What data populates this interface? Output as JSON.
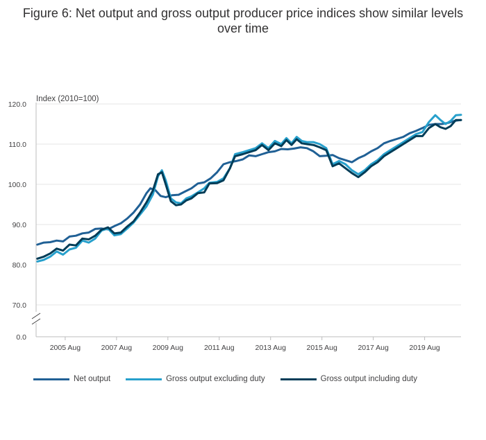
{
  "chart_data": {
    "type": "line",
    "title": "Figure 6: Net output and gross output producer price indices show similar levels over time",
    "ylabel": "Index (2010=100)",
    "xlabel": "",
    "ylim": [
      0,
      120
    ],
    "axis_break": [
      0,
      70
    ],
    "y_ticks": [
      "0.0",
      "70.0",
      "80.0",
      "90.0",
      "100.0",
      "110.0",
      "120.0"
    ],
    "x_ticks": [
      {
        "x": 2005.583,
        "label": "2005 Aug"
      },
      {
        "x": 2007.583,
        "label": "2007 Aug"
      },
      {
        "x": 2009.583,
        "label": "2009 Aug"
      },
      {
        "x": 2011.583,
        "label": "2011 Aug"
      },
      {
        "x": 2013.583,
        "label": "2013 Aug"
      },
      {
        "x": 2015.583,
        "label": "2015 Aug"
      },
      {
        "x": 2017.583,
        "label": "2017 Aug"
      },
      {
        "x": 2019.583,
        "label": "2019 Aug"
      }
    ],
    "grid": true,
    "legend_position": "bottom",
    "series": [
      {
        "name": "Net output",
        "color": "#206095",
        "points": [
          [
            2004.5,
            85.0
          ],
          [
            2004.75,
            85.5
          ],
          [
            2005.0,
            85.6
          ],
          [
            2005.25,
            86.0
          ],
          [
            2005.5,
            85.8
          ],
          [
            2005.75,
            87.0
          ],
          [
            2006.0,
            87.2
          ],
          [
            2006.25,
            87.8
          ],
          [
            2006.5,
            88.0
          ],
          [
            2006.75,
            88.9
          ],
          [
            2007.0,
            89.0
          ],
          [
            2007.25,
            88.8
          ],
          [
            2007.5,
            89.6
          ],
          [
            2007.75,
            90.3
          ],
          [
            2008.0,
            91.5
          ],
          [
            2008.25,
            93.0
          ],
          [
            2008.5,
            95.0
          ],
          [
            2008.75,
            97.8
          ],
          [
            2008.9,
            99.0
          ],
          [
            2009.1,
            98.5
          ],
          [
            2009.3,
            97.1
          ],
          [
            2009.5,
            96.8
          ],
          [
            2009.75,
            97.3
          ],
          [
            2010.0,
            97.4
          ],
          [
            2010.25,
            98.2
          ],
          [
            2010.5,
            99.0
          ],
          [
            2010.75,
            100.2
          ],
          [
            2011.0,
            100.5
          ],
          [
            2011.25,
            101.5
          ],
          [
            2011.5,
            103.0
          ],
          [
            2011.75,
            105.0
          ],
          [
            2012.0,
            105.5
          ],
          [
            2012.25,
            105.8
          ],
          [
            2012.5,
            106.2
          ],
          [
            2012.75,
            107.2
          ],
          [
            2013.0,
            107.0
          ],
          [
            2013.25,
            107.5
          ],
          [
            2013.5,
            108.0
          ],
          [
            2013.75,
            108.2
          ],
          [
            2014.0,
            108.8
          ],
          [
            2014.25,
            108.7
          ],
          [
            2014.5,
            108.9
          ],
          [
            2014.75,
            109.2
          ],
          [
            2015.0,
            109.0
          ],
          [
            2015.25,
            108.2
          ],
          [
            2015.5,
            107.0
          ],
          [
            2015.75,
            107.1
          ],
          [
            2016.0,
            107.3
          ],
          [
            2016.25,
            106.5
          ],
          [
            2016.5,
            106.0
          ],
          [
            2016.75,
            105.5
          ],
          [
            2017.0,
            106.5
          ],
          [
            2017.25,
            107.2
          ],
          [
            2017.5,
            108.2
          ],
          [
            2017.75,
            109.0
          ],
          [
            2018.0,
            110.2
          ],
          [
            2018.25,
            110.8
          ],
          [
            2018.5,
            111.3
          ],
          [
            2018.75,
            111.8
          ],
          [
            2019.0,
            112.7
          ],
          [
            2019.25,
            113.3
          ],
          [
            2019.5,
            114.0
          ],
          [
            2019.75,
            114.8
          ],
          [
            2020.0,
            115.0
          ],
          [
            2020.25,
            115.0
          ],
          [
            2020.5,
            115.3
          ],
          [
            2020.75,
            115.8
          ],
          [
            2021.0,
            116.0
          ]
        ]
      },
      {
        "name": "Gross output excluding duty",
        "color": "#27a0cc",
        "points": [
          [
            2004.5,
            80.8
          ],
          [
            2004.75,
            81.2
          ],
          [
            2005.0,
            82.0
          ],
          [
            2005.25,
            83.3
          ],
          [
            2005.5,
            82.5
          ],
          [
            2005.75,
            83.8
          ],
          [
            2006.0,
            84.2
          ],
          [
            2006.25,
            86.0
          ],
          [
            2006.5,
            85.5
          ],
          [
            2006.75,
            86.5
          ],
          [
            2007.0,
            88.5
          ],
          [
            2007.25,
            89.0
          ],
          [
            2007.5,
            87.3
          ],
          [
            2007.75,
            87.6
          ],
          [
            2008.0,
            89.0
          ],
          [
            2008.25,
            90.5
          ],
          [
            2008.5,
            92.5
          ],
          [
            2008.75,
            94.5
          ],
          [
            2009.0,
            97.5
          ],
          [
            2009.2,
            102.0
          ],
          [
            2009.35,
            103.5
          ],
          [
            2009.5,
            101.0
          ],
          [
            2009.7,
            96.5
          ],
          [
            2009.9,
            95.5
          ],
          [
            2010.1,
            95.3
          ],
          [
            2010.3,
            96.5
          ],
          [
            2010.5,
            97.0
          ],
          [
            2010.75,
            98.0
          ],
          [
            2011.0,
            99.0
          ],
          [
            2011.2,
            100.4
          ],
          [
            2011.5,
            100.6
          ],
          [
            2011.75,
            101.5
          ],
          [
            2012.0,
            104.0
          ],
          [
            2012.2,
            107.5
          ],
          [
            2012.5,
            108.0
          ],
          [
            2012.75,
            108.5
          ],
          [
            2013.0,
            109.0
          ],
          [
            2013.25,
            110.2
          ],
          [
            2013.5,
            109.0
          ],
          [
            2013.75,
            110.8
          ],
          [
            2014.0,
            110.0
          ],
          [
            2014.2,
            111.5
          ],
          [
            2014.4,
            110.2
          ],
          [
            2014.6,
            111.8
          ],
          [
            2014.8,
            110.8
          ],
          [
            2015.0,
            110.5
          ],
          [
            2015.25,
            110.5
          ],
          [
            2015.5,
            110.0
          ],
          [
            2015.75,
            109.0
          ],
          [
            2016.0,
            105.0
          ],
          [
            2016.25,
            105.8
          ],
          [
            2016.5,
            105.0
          ],
          [
            2016.75,
            103.5
          ],
          [
            2017.0,
            102.5
          ],
          [
            2017.25,
            103.5
          ],
          [
            2017.5,
            105.0
          ],
          [
            2017.75,
            106.0
          ],
          [
            2018.0,
            107.5
          ],
          [
            2018.25,
            108.5
          ],
          [
            2018.5,
            109.5
          ],
          [
            2018.75,
            110.5
          ],
          [
            2019.0,
            111.5
          ],
          [
            2019.25,
            112.5
          ],
          [
            2019.5,
            113.0
          ],
          [
            2019.75,
            115.5
          ],
          [
            2020.0,
            117.2
          ],
          [
            2020.2,
            116.0
          ],
          [
            2020.4,
            115.0
          ],
          [
            2020.6,
            115.8
          ],
          [
            2020.8,
            117.2
          ],
          [
            2021.0,
            117.3
          ]
        ]
      },
      {
        "name": "Gross output including duty",
        "color": "#003c57",
        "points": [
          [
            2004.5,
            81.5
          ],
          [
            2004.75,
            82.0
          ],
          [
            2005.0,
            82.8
          ],
          [
            2005.25,
            84.0
          ],
          [
            2005.5,
            83.5
          ],
          [
            2005.75,
            85.0
          ],
          [
            2006.0,
            84.8
          ],
          [
            2006.25,
            86.5
          ],
          [
            2006.5,
            86.3
          ],
          [
            2006.75,
            87.2
          ],
          [
            2007.0,
            88.7
          ],
          [
            2007.25,
            89.3
          ],
          [
            2007.5,
            87.8
          ],
          [
            2007.75,
            88.0
          ],
          [
            2008.0,
            89.5
          ],
          [
            2008.25,
            90.8
          ],
          [
            2008.5,
            93.0
          ],
          [
            2008.75,
            95.5
          ],
          [
            2009.0,
            98.5
          ],
          [
            2009.2,
            102.5
          ],
          [
            2009.35,
            103.0
          ],
          [
            2009.5,
            100.0
          ],
          [
            2009.7,
            95.8
          ],
          [
            2009.9,
            94.8
          ],
          [
            2010.1,
            95.0
          ],
          [
            2010.3,
            96.0
          ],
          [
            2010.5,
            96.5
          ],
          [
            2010.75,
            97.8
          ],
          [
            2011.0,
            98.0
          ],
          [
            2011.2,
            100.2
          ],
          [
            2011.5,
            100.3
          ],
          [
            2011.75,
            101.0
          ],
          [
            2012.0,
            104.0
          ],
          [
            2012.2,
            107.0
          ],
          [
            2012.5,
            107.5
          ],
          [
            2012.75,
            108.0
          ],
          [
            2013.0,
            108.5
          ],
          [
            2013.25,
            109.8
          ],
          [
            2013.5,
            108.5
          ],
          [
            2013.75,
            110.2
          ],
          [
            2014.0,
            109.5
          ],
          [
            2014.2,
            111.0
          ],
          [
            2014.4,
            109.8
          ],
          [
            2014.6,
            111.2
          ],
          [
            2014.8,
            110.2
          ],
          [
            2015.0,
            110.0
          ],
          [
            2015.25,
            109.8
          ],
          [
            2015.5,
            109.2
          ],
          [
            2015.75,
            108.5
          ],
          [
            2016.0,
            104.5
          ],
          [
            2016.25,
            105.2
          ],
          [
            2016.5,
            104.0
          ],
          [
            2016.75,
            102.8
          ],
          [
            2017.0,
            101.8
          ],
          [
            2017.25,
            103.0
          ],
          [
            2017.5,
            104.5
          ],
          [
            2017.75,
            105.5
          ],
          [
            2018.0,
            107.0
          ],
          [
            2018.25,
            108.0
          ],
          [
            2018.5,
            109.0
          ],
          [
            2018.75,
            110.0
          ],
          [
            2019.0,
            111.0
          ],
          [
            2019.25,
            112.0
          ],
          [
            2019.5,
            112.0
          ],
          [
            2019.75,
            114.0
          ],
          [
            2020.0,
            115.0
          ],
          [
            2020.2,
            114.2
          ],
          [
            2020.4,
            113.8
          ],
          [
            2020.6,
            114.5
          ],
          [
            2020.8,
            116.0
          ],
          [
            2021.0,
            116.0
          ]
        ]
      }
    ]
  },
  "legend": [
    {
      "label": "Net output",
      "color": "#206095"
    },
    {
      "label": "Gross output excluding duty",
      "color": "#27a0cc"
    },
    {
      "label": "Gross output including duty",
      "color": "#003c57"
    }
  ]
}
